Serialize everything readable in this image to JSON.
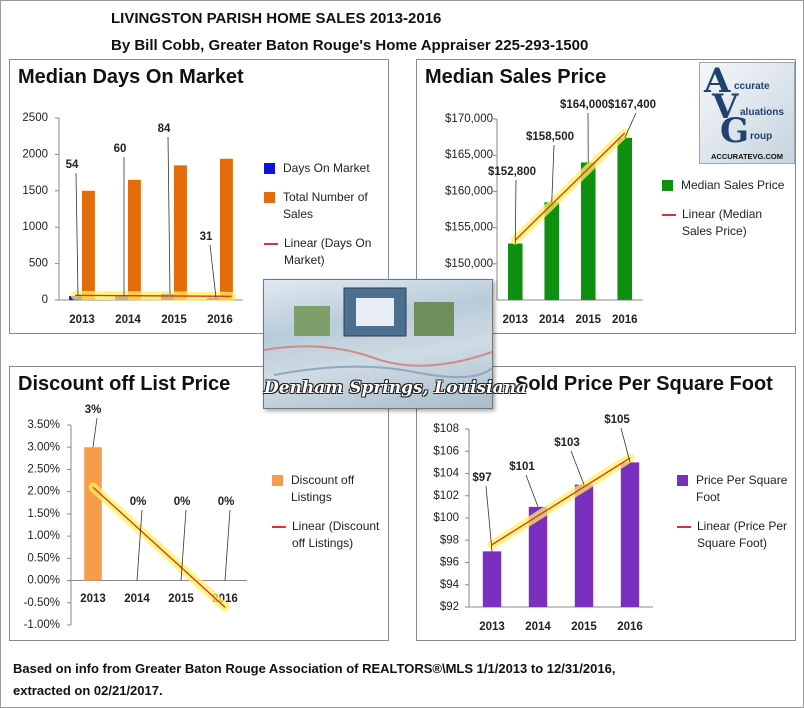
{
  "header": {
    "title": "LIVINGSTON PARISH HOME SALES 2013-2016",
    "subtitle": "By Bill Cobb, Greater Baton Rouge's Home Appraiser 225-293-1500"
  },
  "logo": {
    "letters": [
      "A",
      "V",
      "G"
    ],
    "words": [
      "ccurate",
      "aluations",
      "roup"
    ],
    "site": "ACCURATEVG.COM"
  },
  "photo_caption": "Denham Springs, Louisiana",
  "footer": [
    "Based on info from Greater Baton Rouge Association of REALTORS®\\MLS 1/1/2013 to 12/31/2016,",
    "extracted on 02/21/2017."
  ],
  "chart_data": [
    {
      "type": "bar",
      "title": "Median Days On Market",
      "categories": [
        "2013",
        "2014",
        "2015",
        "2016"
      ],
      "series": [
        {
          "name": "Days On Market",
          "color": "#1010e0",
          "values": [
            54,
            60,
            84,
            31
          ],
          "data_labels": true,
          "trendline": {
            "name": "Linear (Days On Market)",
            "color": "#e0302a"
          }
        },
        {
          "name": "Total Number of Sales",
          "color": "#e46c0a",
          "values": [
            1500,
            1650,
            1850,
            1940
          ]
        }
      ],
      "ylim": [
        0,
        2500
      ],
      "yticks": [
        0,
        500,
        1000,
        1500,
        2000,
        2500
      ]
    },
    {
      "type": "bar",
      "title": "Median Sales Price",
      "categories": [
        "2013",
        "2014",
        "2015",
        "2016"
      ],
      "series": [
        {
          "name": "Median Sales Price",
          "color": "#109010",
          "values": [
            152800,
            158500,
            164000,
            167400
          ],
          "value_labels": [
            "$152,800",
            "$158,500",
            "$164,000",
            "$167,400"
          ],
          "trendline": {
            "name": "Linear (Median Sales Price)",
            "color": "#e0302a"
          }
        }
      ],
      "ylim": [
        145000,
        170000
      ],
      "yticks": [
        {
          "value": 150000,
          "label": "$150,000"
        },
        {
          "value": 155000,
          "label": "$155,000"
        },
        {
          "value": 160000,
          "label": "$160,000"
        },
        {
          "value": 165000,
          "label": "$165,000"
        },
        {
          "value": 170000,
          "label": "$170,000"
        }
      ]
    },
    {
      "type": "bar",
      "title": "Discount off List Price",
      "categories": [
        "2013",
        "2014",
        "2015",
        "2016"
      ],
      "series": [
        {
          "name": "Discount off Listings",
          "color": "#f59d4a",
          "values": [
            3,
            0,
            0,
            0
          ],
          "value_labels": [
            "3%",
            "0%",
            "0%",
            "0%"
          ],
          "trendline": {
            "name": "Linear (Discount off Listings)",
            "color": "#e0302a"
          }
        }
      ],
      "ylim": [
        -1,
        3.5
      ],
      "yticks": [
        {
          "value": -1,
          "label": "-1.00%"
        },
        {
          "value": -0.5,
          "label": "-0.50%"
        },
        {
          "value": 0,
          "label": "0.00%"
        },
        {
          "value": 0.5,
          "label": "0.50%"
        },
        {
          "value": 1,
          "label": "1.00%"
        },
        {
          "value": 1.5,
          "label": "1.50%"
        },
        {
          "value": 2,
          "label": "2.00%"
        },
        {
          "value": 2.5,
          "label": "2.50%"
        },
        {
          "value": 3,
          "label": "3.00%"
        },
        {
          "value": 3.5,
          "label": "3.50%"
        }
      ]
    },
    {
      "type": "bar",
      "title": "Sold Price Per Square Foot",
      "categories": [
        "2013",
        "2014",
        "2015",
        "2016"
      ],
      "series": [
        {
          "name": "Price Per Square Foot",
          "color": "#7a2fc0",
          "values": [
            97,
            101,
            103,
            105
          ],
          "value_labels": [
            "$97",
            "$101",
            "$103",
            "$105"
          ],
          "trendline": {
            "name": "Linear (Price Per Square Foot)",
            "color": "#e0302a"
          }
        }
      ],
      "ylim": [
        92,
        108
      ],
      "yticks": [
        {
          "value": 92,
          "label": "$92"
        },
        {
          "value": 94,
          "label": "$94"
        },
        {
          "value": 96,
          "label": "$96"
        },
        {
          "value": 98,
          "label": "$98"
        },
        {
          "value": 100,
          "label": "$100"
        },
        {
          "value": 102,
          "label": "$102"
        },
        {
          "value": 104,
          "label": "$104"
        },
        {
          "value": 106,
          "label": "$106"
        },
        {
          "value": 108,
          "label": "$108"
        }
      ]
    }
  ]
}
